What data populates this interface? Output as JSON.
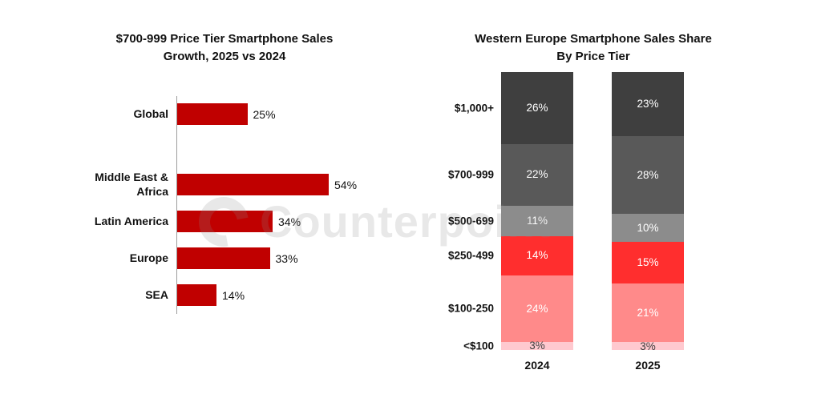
{
  "watermark": {
    "text": "Counterpoint"
  },
  "colors": {
    "growth_bar": "#c00000",
    "axis_line": "#9c9c9c"
  },
  "chart_data": [
    {
      "type": "bar",
      "orientation": "horizontal",
      "title": "$700-999 Price Tier Smartphone Sales\nGrowth, 2025 vs 2024",
      "categories": [
        "Global",
        "Middle East &\nAfrica",
        "Latin America",
        "Europe",
        "SEA"
      ],
      "values": [
        25,
        54,
        34,
        33,
        14
      ],
      "value_labels": [
        "25%",
        "54%",
        "34%",
        "33%",
        "14%"
      ],
      "bar_color": "#c00000",
      "xlim": [
        0,
        60
      ],
      "gap_after_index": 0,
      "grid": false
    },
    {
      "type": "stacked-bar",
      "title": "Western Europe Smartphone Sales Share\nBy Price Tier",
      "categories": [
        "2024",
        "2025"
      ],
      "stack_total": 100,
      "legend_position": "left-tier-labels",
      "series": [
        {
          "name": "$1,000+",
          "values": [
            26,
            23
          ],
          "value_labels": [
            "26%",
            "23%"
          ],
          "color": "#3f3f3f",
          "text_color": "#ffffff"
        },
        {
          "name": "$700-999",
          "values": [
            22,
            28
          ],
          "value_labels": [
            "22%",
            "28%"
          ],
          "color": "#595959",
          "text_color": "#ffffff"
        },
        {
          "name": "$500-699",
          "values": [
            11,
            10
          ],
          "value_labels": [
            "11%",
            "10%"
          ],
          "color": "#8c8c8c",
          "text_color": "#ffffff"
        },
        {
          "name": "$250-499",
          "values": [
            14,
            15
          ],
          "value_labels": [
            "14%",
            "15%"
          ],
          "color": "#ff2e2e",
          "text_color": "#ffffff"
        },
        {
          "name": "$100-250",
          "values": [
            24,
            21
          ],
          "value_labels": [
            "24%",
            "21%"
          ],
          "color": "#ff8a8a",
          "text_color": "#ffffff"
        },
        {
          "name": "<$100",
          "values": [
            3,
            3
          ],
          "value_labels": [
            "3%",
            "3%"
          ],
          "color": "#ffc9cf",
          "text_color": "#3f3f3f"
        }
      ]
    }
  ]
}
